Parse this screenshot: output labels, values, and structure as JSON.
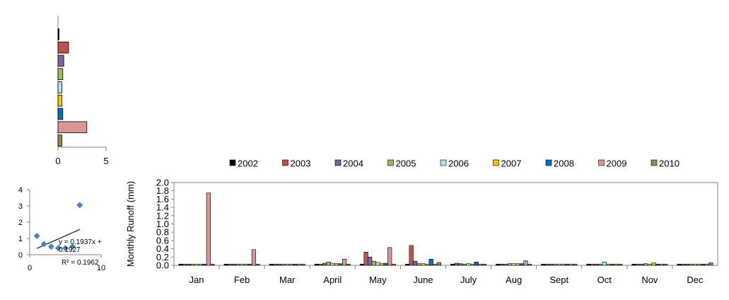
{
  "colors": {
    "2002": "#000000",
    "2003": "#C0504D",
    "2004": "#8064A2",
    "2005": "#9BBB59",
    "2006": "#B7DEE8",
    "2007": "#F2C200",
    "2008": "#0070C0",
    "2009": "#D99694",
    "2010": "#948A54",
    "scatter_point": "#4F81BD"
  },
  "chart_data": [
    {
      "type": "bar",
      "orientation": "horizontal",
      "categories": [
        "2002",
        "2003",
        "2004",
        "2005",
        "2006",
        "2007",
        "2008",
        "2009",
        "2010"
      ],
      "values": [
        0.1,
        1.1,
        0.6,
        0.5,
        0.4,
        0.4,
        0.5,
        3.0,
        0.4
      ],
      "xlim": [
        0,
        5
      ],
      "xticks": [
        "0",
        "5"
      ],
      "title": "",
      "xlabel": "",
      "ylabel": ""
    },
    {
      "type": "scatter",
      "points": [
        [
          1,
          1.15
        ],
        [
          2,
          0.65
        ],
        [
          3,
          0.5
        ],
        [
          4,
          0.4
        ],
        [
          5,
          0.4
        ],
        [
          6,
          0.5
        ],
        [
          7,
          3.05
        ]
      ],
      "xlim": [
        0,
        10
      ],
      "ylim": [
        0,
        4
      ],
      "xticks": [
        "0",
        "10"
      ],
      "yticks": [
        "0",
        "1",
        "2",
        "3",
        "4"
      ],
      "trendline": {
        "slope": 0.1937,
        "intercept": 0.1927,
        "x_range": [
          1,
          7
        ]
      },
      "equation_line1": "y = 0.1937x +",
      "equation_line2": "0.1927",
      "r2_label": "R² = 0.1962"
    },
    {
      "type": "bar",
      "categories": [
        "Jan",
        "Feb",
        "Mar",
        "April",
        "May",
        "June",
        "July",
        "Aug",
        "Sept",
        "Oct",
        "Nov",
        "Dec"
      ],
      "ylabel": "Monthly  Runoff (mm)",
      "ylim": [
        0,
        2.0
      ],
      "yticks": [
        "0.0",
        "0.2",
        "0.4",
        "0.6",
        "0.8",
        "1.0",
        "1.2",
        "1.4",
        "1.6",
        "1.8",
        "2.0"
      ],
      "legend_position": "top",
      "series": [
        {
          "name": "2002",
          "values": [
            0.03,
            0.03,
            0.03,
            0.03,
            0.03,
            0.03,
            0.03,
            0.03,
            0.03,
            0.03,
            0.03,
            0.03
          ]
        },
        {
          "name": "2003",
          "values": [
            0.03,
            0.03,
            0.03,
            0.03,
            0.32,
            0.48,
            0.05,
            0.03,
            0.03,
            0.03,
            0.03,
            0.03
          ]
        },
        {
          "name": "2004",
          "values": [
            0.03,
            0.03,
            0.03,
            0.05,
            0.2,
            0.1,
            0.04,
            0.03,
            0.03,
            0.03,
            0.03,
            0.03
          ]
        },
        {
          "name": "2005",
          "values": [
            0.03,
            0.03,
            0.03,
            0.08,
            0.1,
            0.04,
            0.03,
            0.04,
            0.03,
            0.03,
            0.04,
            0.03
          ]
        },
        {
          "name": "2006",
          "values": [
            0.03,
            0.03,
            0.03,
            0.05,
            0.07,
            0.04,
            0.04,
            0.04,
            0.03,
            0.08,
            0.03,
            0.03
          ]
        },
        {
          "name": "2007",
          "values": [
            0.03,
            0.03,
            0.03,
            0.04,
            0.04,
            0.03,
            0.03,
            0.04,
            0.03,
            0.03,
            0.06,
            0.03
          ]
        },
        {
          "name": "2008",
          "values": [
            0.03,
            0.03,
            0.03,
            0.04,
            0.05,
            0.15,
            0.08,
            0.04,
            0.03,
            0.03,
            0.03,
            0.03
          ]
        },
        {
          "name": "2009",
          "values": [
            1.75,
            0.38,
            0.03,
            0.15,
            0.43,
            0.03,
            0.03,
            0.11,
            0.03,
            0.03,
            0.03,
            0.03
          ]
        },
        {
          "name": "2010",
          "values": [
            0.03,
            0.03,
            0.03,
            0.03,
            0.03,
            0.07,
            0.03,
            0.03,
            0.03,
            0.03,
            0.03,
            0.06
          ]
        }
      ]
    }
  ]
}
